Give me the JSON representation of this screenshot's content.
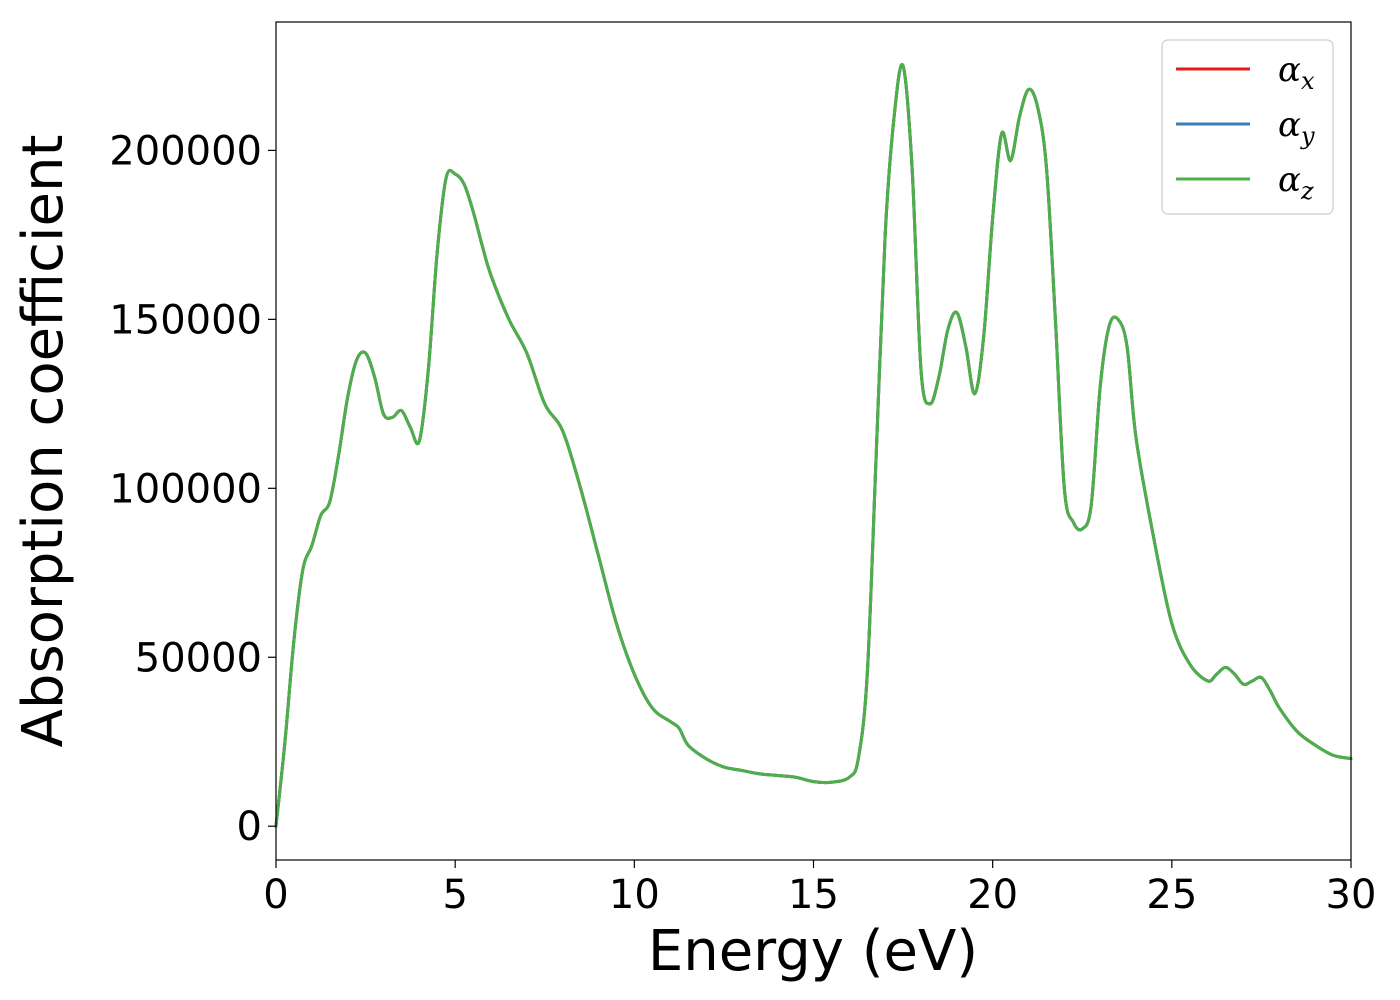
{
  "chart_data": {
    "type": "line",
    "title": "",
    "xlabel": "Energy (eV)",
    "ylabel": "Absorption coefficient",
    "xlim": [
      0,
      30
    ],
    "ylim": [
      -10000,
      238000
    ],
    "xticks": [
      0,
      5,
      10,
      15,
      20,
      25,
      30
    ],
    "xtick_labels": [
      "0",
      "5",
      "10",
      "15",
      "20",
      "25",
      "30"
    ],
    "yticks": [
      0,
      50000,
      100000,
      150000,
      200000
    ],
    "ytick_labels": [
      "0",
      "50000",
      "100000",
      "150000",
      "200000"
    ],
    "grid": false,
    "legend_position": "top-right",
    "x": [
      0,
      0.25,
      0.5,
      0.75,
      1,
      1.25,
      1.5,
      1.75,
      2,
      2.25,
      2.5,
      2.75,
      3,
      3.25,
      3.5,
      3.75,
      4,
      4.25,
      4.5,
      4.75,
      5,
      5.25,
      5.5,
      5.75,
      6,
      6.5,
      7,
      7.5,
      8,
      8.5,
      9,
      9.5,
      10,
      10.5,
      11,
      11.25,
      11.5,
      12,
      12.5,
      13,
      13.5,
      14,
      14.5,
      15,
      15.5,
      16,
      16.25,
      16.5,
      16.75,
      17,
      17.25,
      17.5,
      17.75,
      18,
      18.25,
      18.5,
      18.75,
      19,
      19.25,
      19.5,
      19.75,
      20,
      20.25,
      20.5,
      20.75,
      21,
      21.25,
      21.5,
      21.75,
      22,
      22.25,
      22.5,
      22.75,
      23,
      23.25,
      23.5,
      23.75,
      24,
      24.5,
      25,
      25.5,
      26,
      26.25,
      26.5,
      26.75,
      27,
      27.25,
      27.5,
      27.75,
      28,
      28.5,
      29,
      29.5,
      30
    ],
    "series": [
      {
        "name": "α_x",
        "label_base": "α",
        "label_sub": "x",
        "color": "#e41a1c",
        "values": [
          0,
          25000,
          55000,
          76000,
          83000,
          92000,
          96000,
          110000,
          127000,
          138000,
          140000,
          133000,
          122000,
          121000,
          123000,
          118000,
          114000,
          135000,
          170000,
          192000,
          193000,
          190000,
          182000,
          172000,
          163000,
          150000,
          140000,
          125000,
          117000,
          100000,
          80000,
          60000,
          45000,
          35000,
          31000,
          29000,
          24000,
          20000,
          17500,
          16500,
          15500,
          15000,
          14500,
          13200,
          13000,
          14500,
          20000,
          45000,
          110000,
          175000,
          210000,
          225000,
          195000,
          135000,
          125000,
          133000,
          147000,
          152000,
          142000,
          128000,
          145000,
          180000,
          205000,
          197000,
          210000,
          218000,
          213000,
          195000,
          150000,
          100000,
          90000,
          88000,
          95000,
          130000,
          148000,
          150000,
          142000,
          115000,
          85000,
          60000,
          48000,
          43000,
          45000,
          47000,
          45000,
          42000,
          43000,
          44000,
          40000,
          35000,
          28000,
          24000,
          21000,
          20000
        ]
      },
      {
        "name": "α_y",
        "label_base": "α",
        "label_sub": "y",
        "color": "#377eb8",
        "values": [
          0,
          25000,
          55000,
          76000,
          83000,
          92000,
          96000,
          110000,
          127000,
          138000,
          140000,
          133000,
          122000,
          121000,
          123000,
          118000,
          114000,
          135000,
          170000,
          192000,
          193000,
          190000,
          182000,
          172000,
          163000,
          150000,
          140000,
          125000,
          117000,
          100000,
          80000,
          60000,
          45000,
          35000,
          31000,
          29000,
          24000,
          20000,
          17500,
          16500,
          15500,
          15000,
          14500,
          13200,
          13000,
          14500,
          20000,
          45000,
          110000,
          175000,
          210000,
          225000,
          195000,
          135000,
          125000,
          133000,
          147000,
          152000,
          142000,
          128000,
          145000,
          180000,
          205000,
          197000,
          210000,
          218000,
          213000,
          195000,
          150000,
          100000,
          90000,
          88000,
          95000,
          130000,
          148000,
          150000,
          142000,
          115000,
          85000,
          60000,
          48000,
          43000,
          45000,
          47000,
          45000,
          42000,
          43000,
          44000,
          40000,
          35000,
          28000,
          24000,
          21000,
          20000
        ]
      },
      {
        "name": "α_z",
        "label_base": "α",
        "label_sub": "z",
        "color": "#4daf4a",
        "values": [
          0,
          25000,
          55000,
          76000,
          83000,
          92000,
          96000,
          110000,
          127000,
          138000,
          140000,
          133000,
          122000,
          121000,
          123000,
          118000,
          114000,
          135000,
          170000,
          192000,
          193000,
          190000,
          182000,
          172000,
          163000,
          150000,
          140000,
          125000,
          117000,
          100000,
          80000,
          60000,
          45000,
          35000,
          31000,
          29000,
          24000,
          20000,
          17500,
          16500,
          15500,
          15000,
          14500,
          13200,
          13000,
          14500,
          20000,
          45000,
          110000,
          175000,
          210000,
          225000,
          195000,
          135000,
          125000,
          133000,
          147000,
          152000,
          142000,
          128000,
          145000,
          180000,
          205000,
          197000,
          210000,
          218000,
          213000,
          195000,
          150000,
          100000,
          90000,
          88000,
          95000,
          130000,
          148000,
          150000,
          142000,
          115000,
          85000,
          60000,
          48000,
          43000,
          45000,
          47000,
          45000,
          42000,
          43000,
          44000,
          40000,
          35000,
          28000,
          24000,
          21000,
          20000
        ]
      }
    ]
  }
}
